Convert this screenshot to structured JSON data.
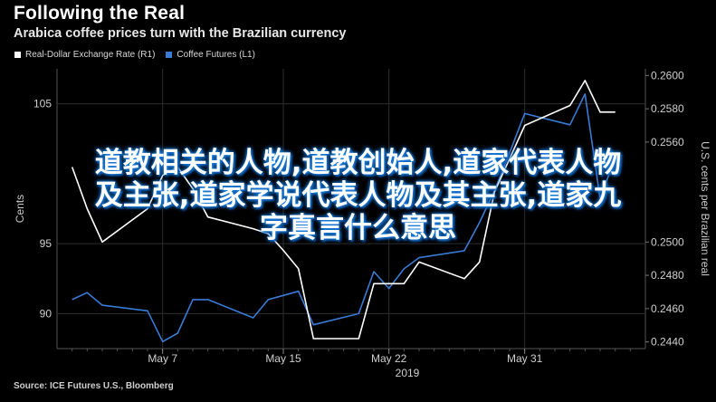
{
  "header": {
    "title": "Following the Real",
    "subtitle": "Arabica coffee prices turn with the Brazilian currency"
  },
  "legend": [
    {
      "label": "Real-Dollar Exchange Rate (R1)",
      "color": "#ffffff"
    },
    {
      "label": "Coffee Futures (L1)",
      "color": "#3a7bd5"
    }
  ],
  "overlay": {
    "line1": "道教相关的人物,道教创始人,道家代表人物",
    "line2": "及主张,道家学说代表人物及其主张,道家九",
    "line3": "字真言什么意思"
  },
  "source": "Source: ICE Futures U.S., Bloomberg",
  "chart_data": {
    "type": "line",
    "x_ticks": [
      "May 7",
      "May 15",
      "May 22",
      "May 31"
    ],
    "x_year": "2019",
    "left_axis": {
      "label": "Cents",
      "ticks": [
        "90",
        "95",
        "105"
      ],
      "range": [
        87.5,
        107.5
      ]
    },
    "right_axis": {
      "label": "U.S. cents per Brazilian real",
      "ticks": [
        "0.2440",
        "0.2460",
        "0.2480",
        "0.2500",
        "0.2560",
        "0.2580",
        "0.2600"
      ],
      "range": [
        0.2436,
        0.2604
      ]
    },
    "x": [
      "2019-05-01",
      "2019-05-02",
      "2019-05-03",
      "2019-05-06",
      "2019-05-07",
      "2019-05-08",
      "2019-05-09",
      "2019-05-10",
      "2019-05-13",
      "2019-05-14",
      "2019-05-15",
      "2019-05-16",
      "2019-05-17",
      "2019-05-20",
      "2019-05-21",
      "2019-05-22",
      "2019-05-23",
      "2019-05-24",
      "2019-05-27",
      "2019-05-28",
      "2019-05-29",
      "2019-05-30",
      "2019-05-31",
      "2019-06-03",
      "2019-06-04",
      "2019-06-05",
      "2019-06-06"
    ],
    "series": [
      {
        "name": "Coffee Futures (L1)",
        "axis": "left",
        "color": "#3a7bd5",
        "values": [
          91.0,
          91.5,
          90.6,
          90.2,
          88.0,
          88.6,
          91.0,
          91.0,
          89.7,
          91.0,
          91.3,
          91.6,
          89.2,
          90.0,
          93.0,
          91.8,
          93.2,
          94.0,
          94.5,
          96.5,
          98.8,
          101.5,
          104.3,
          103.5,
          105.7,
          98.2,
          101.2
        ]
      },
      {
        "name": "Real-Dollar Exchange Rate (R1)",
        "axis": "right",
        "color": "#ffffff",
        "values": [
          0.2545,
          0.252,
          0.25,
          0.252,
          0.254,
          0.2545,
          0.2532,
          0.2515,
          0.2508,
          0.2505,
          0.2495,
          0.2484,
          0.2442,
          0.2442,
          0.2475,
          0.2475,
          0.2475,
          0.2488,
          0.2478,
          0.2488,
          0.253,
          0.255,
          0.257,
          0.2582,
          0.2597,
          0.2578,
          0.2578
        ]
      }
    ],
    "grid": true,
    "legend_position": "top-left"
  }
}
